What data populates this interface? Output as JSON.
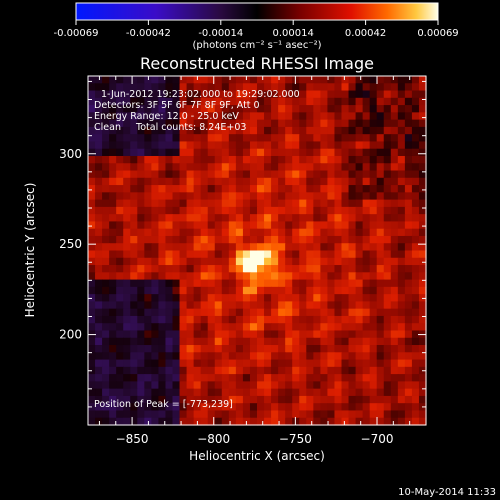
{
  "chart_data": {
    "type": "heatmap",
    "title": "Reconstructed RHESSI Image",
    "xlabel": "Heliocentric X (arcsec)",
    "ylabel": "Heliocentric Y (arcsec)",
    "xlim": [
      -877,
      -670
    ],
    "ylim": [
      150,
      343
    ],
    "xticks": [
      -850,
      -800,
      -750,
      -700
    ],
    "yticks": [
      200,
      250,
      300
    ],
    "colorbar": {
      "ticks": [
        "-0.00069",
        "-0.00042",
        "-0.00014",
        "0.00014",
        "0.00042",
        "0.00069"
      ],
      "range": [
        -0.00069,
        0.00069
      ],
      "unit_label": "(photons cm⁻² s⁻¹ asec⁻²)"
    },
    "annotations": [
      "1-Jun-2012 19:23:02.000 to 19:29:02.000",
      "Detectors: 3F 5F 6F 7F 8F 9F, Att 0",
      "Energy Range: 12.0 - 25.0 keV",
      "Clean     Total counts: 8.24E+03"
    ],
    "peak_label": "Position of Peak = [-773,239]",
    "peak": {
      "x": -773,
      "y": 239,
      "value": 0.00069
    },
    "footer": "10-May-2014 11:33",
    "colors": {
      "background": "#000000",
      "text": "#ffffff"
    }
  }
}
